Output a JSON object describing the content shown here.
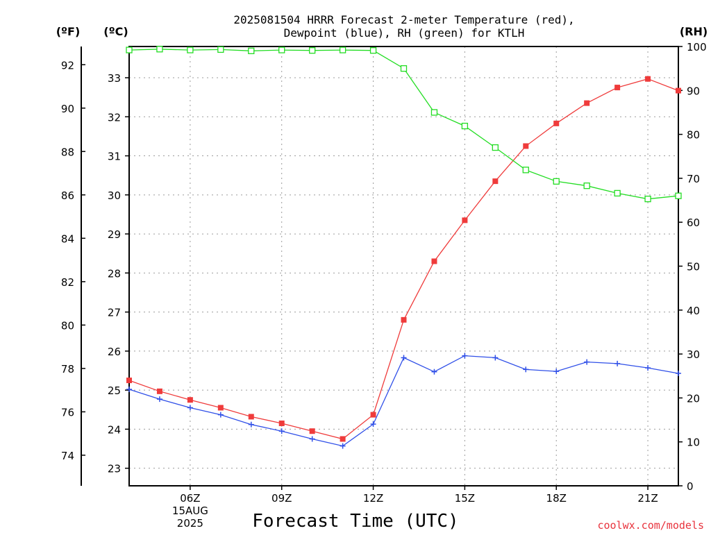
{
  "chart_data": {
    "type": "line",
    "title_line1": "2025081504 HRRR Forecast 2-meter Temperature (red),",
    "title_line2": "Dewpoint (blue), RH (green) for KTLH",
    "xlabel": "Forecast Time (UTC)",
    "credit": "coolwx.com/models",
    "units": {
      "fahrenheit": "(ºF)",
      "celsius": "(ºC)",
      "rh": "(RH)"
    },
    "x_hours": [
      4,
      5,
      6,
      7,
      8,
      9,
      10,
      11,
      12,
      13,
      14,
      15,
      16,
      17,
      18,
      19,
      20,
      21,
      22
    ],
    "xlim": [
      4,
      22
    ],
    "x_ticks": [
      {
        "hour": 6,
        "label": "06Z",
        "date": "15AUG",
        "year": "2025"
      },
      {
        "hour": 9,
        "label": "09Z"
      },
      {
        "hour": 12,
        "label": "12Z"
      },
      {
        "hour": 15,
        "label": "15Z"
      },
      {
        "hour": 18,
        "label": "18Z"
      },
      {
        "hour": 21,
        "label": "21Z"
      }
    ],
    "celsius_axis": {
      "ylim": [
        22.55,
        33.8
      ],
      "ticks": [
        23,
        24,
        25,
        26,
        27,
        28,
        29,
        30,
        31,
        32,
        33
      ]
    },
    "fahrenheit_axis": {
      "ticks": [
        74,
        76,
        78,
        80,
        82,
        84,
        86,
        88,
        90,
        92
      ]
    },
    "rh_axis": {
      "ylim": [
        0,
        100
      ],
      "ticks": [
        0,
        10,
        20,
        30,
        40,
        50,
        60,
        70,
        80,
        90,
        100
      ]
    },
    "grid": true,
    "series": [
      {
        "name": "Temperature",
        "axis": "celsius",
        "color": "#ef3b3b",
        "marker": "filled-square",
        "values": [
          25.25,
          24.97,
          24.75,
          24.55,
          24.32,
          24.15,
          23.95,
          23.75,
          24.37,
          26.8,
          28.3,
          29.35,
          30.35,
          31.25,
          31.83,
          32.35,
          32.75,
          32.97,
          32.67
        ]
      },
      {
        "name": "Dewpoint",
        "axis": "celsius",
        "color": "#2f4fe8",
        "marker": "plus",
        "values": [
          25.02,
          24.77,
          24.55,
          24.37,
          24.12,
          23.95,
          23.75,
          23.57,
          24.13,
          25.83,
          25.47,
          25.88,
          25.83,
          25.53,
          25.48,
          25.72,
          25.68,
          25.57,
          25.43
        ]
      },
      {
        "name": "RH",
        "axis": "rh",
        "color": "#22dd22",
        "marker": "open-square",
        "values": [
          99.2,
          99.4,
          99.2,
          99.3,
          99.0,
          99.2,
          99.1,
          99.2,
          99.1,
          95.0,
          85.0,
          81.9,
          77.0,
          71.9,
          69.3,
          68.3,
          66.6,
          65.3,
          66.0
        ]
      }
    ]
  }
}
